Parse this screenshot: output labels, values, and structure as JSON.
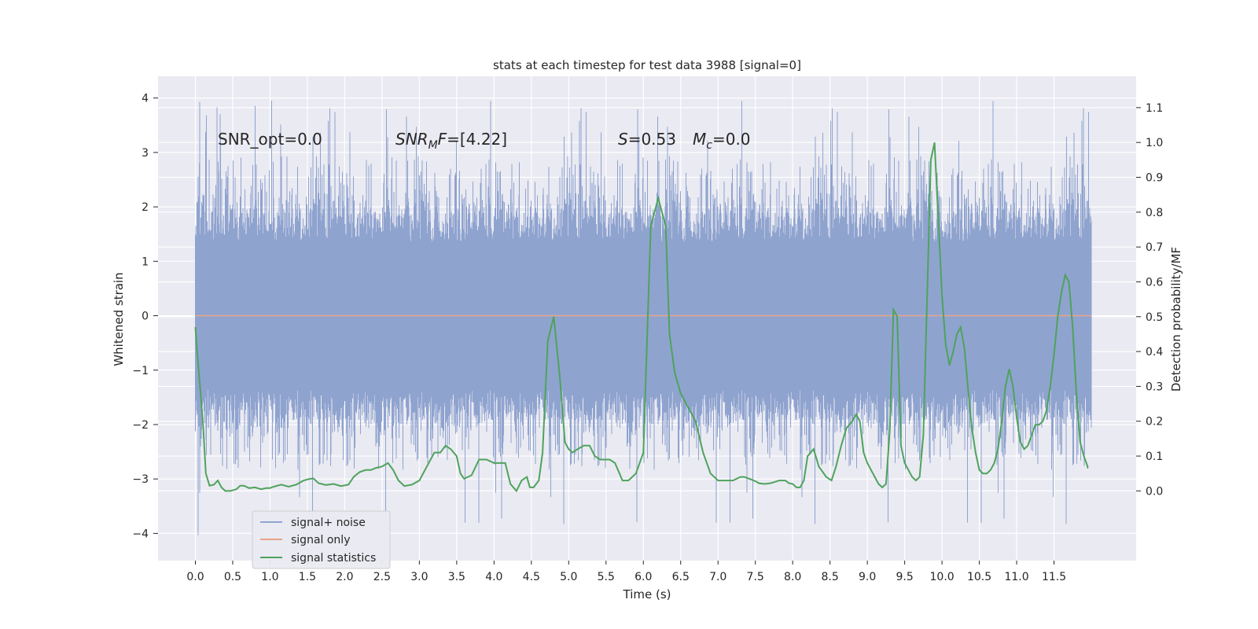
{
  "chart_data": {
    "type": "line",
    "title": "stats at each timestep for test data 3988 [signal=0]",
    "xlabel": "Time (s)",
    "ylabel_left": "Whitened strain",
    "ylabel_right": "Detection probability/MF",
    "xlim": [
      -0.5,
      12.6
    ],
    "ylim_left": [
      -4.5,
      4.4
    ],
    "ylim_right": [
      -0.2,
      1.19
    ],
    "xticks": [
      0.0,
      0.5,
      1.0,
      1.5,
      2.0,
      2.5,
      3.0,
      3.5,
      4.0,
      4.5,
      5.0,
      5.5,
      6.0,
      6.5,
      7.0,
      7.5,
      8.0,
      8.5,
      9.0,
      9.5,
      10.0,
      10.5,
      11.0,
      11.5
    ],
    "xtick_labels": [
      "0.0",
      "0.5",
      "1.0",
      "1.5",
      "2.0",
      "2.5",
      "3.0",
      "3.5",
      "4.0",
      "4.5",
      "5.0",
      "5.5",
      "6.0",
      "6.5",
      "7.0",
      "7.5",
      "8.0",
      "8.5",
      "9.0",
      "9.5",
      "10.0",
      "10.5",
      "11.0",
      "11.5"
    ],
    "yticks_left": [
      -4,
      -3,
      -2,
      -1,
      0,
      1,
      2,
      3,
      4
    ],
    "ytick_labels_left": [
      "−4",
      "−3",
      "−2",
      "−1",
      "0",
      "1",
      "2",
      "3",
      "4"
    ],
    "yticks_right": [
      0.0,
      0.1,
      0.2,
      0.3,
      0.4,
      0.5,
      0.6,
      0.7,
      0.8,
      0.9,
      1.0,
      1.1
    ],
    "ytick_labels_right": [
      "0.0",
      "0.1",
      "0.2",
      "0.3",
      "0.4",
      "0.5",
      "0.6",
      "0.7",
      "0.8",
      "0.9",
      "1.0",
      "1.1"
    ],
    "annotations": {
      "snr_opt": "SNR_opt=0.0",
      "snr_mf_main": "SNR",
      "snr_mf_sub": "M",
      "snr_mf_rest": "F",
      "snr_mf_value": "=[4.22]",
      "s_symbol": "S",
      "s_value": "=0.53",
      "mc_symbol": "M",
      "mc_sub": "c",
      "mc_value": "=0.0"
    },
    "series": [
      {
        "name": "signal+ noise",
        "color": "#8fa3cf",
        "axis": "left",
        "kind": "dense_noise",
        "x_range": [
          0.0,
          12.0
        ],
        "sample_rate_hz": 2048,
        "core_band": [
          -1.35,
          1.35
        ],
        "typical_peak": [
          -2.7,
          2.8
        ],
        "extremes": [
          -4.05,
          4.0
        ]
      },
      {
        "name": "signal only",
        "color": "#e8a58a",
        "axis": "left",
        "x": [
          0.0,
          12.0
        ],
        "values": [
          0.0,
          0.0
        ]
      },
      {
        "name": "signal statistics",
        "color": "#4ea35c",
        "axis": "right",
        "x": [
          0.0,
          0.02,
          0.1,
          0.14,
          0.19,
          0.25,
          0.3,
          0.35,
          0.4,
          0.47,
          0.55,
          0.6,
          0.65,
          0.72,
          0.8,
          0.88,
          0.95,
          1.0,
          1.05,
          1.15,
          1.25,
          1.35,
          1.45,
          1.52,
          1.58,
          1.65,
          1.75,
          1.85,
          1.95,
          2.05,
          2.12,
          2.2,
          2.28,
          2.35,
          2.42,
          2.5,
          2.58,
          2.65,
          2.72,
          2.8,
          2.9,
          3.0,
          3.1,
          3.2,
          3.28,
          3.35,
          3.42,
          3.5,
          3.55,
          3.6,
          3.7,
          3.8,
          3.9,
          4.0,
          4.08,
          4.15,
          4.22,
          4.3,
          4.37,
          4.44,
          4.48,
          4.53,
          4.6,
          4.65,
          4.72,
          4.8,
          4.88,
          4.95,
          5.0,
          5.05,
          5.12,
          5.2,
          5.28,
          5.35,
          5.42,
          5.48,
          5.55,
          5.62,
          5.68,
          5.72,
          5.8,
          5.9,
          6.0,
          6.1,
          6.2,
          6.3,
          6.35,
          6.42,
          6.5,
          6.6,
          6.7,
          6.8,
          6.9,
          7.0,
          7.1,
          7.2,
          7.3,
          7.35,
          7.42,
          7.5,
          7.55,
          7.62,
          7.7,
          7.75,
          7.82,
          7.9,
          7.95,
          8.0,
          8.05,
          8.1,
          8.15,
          8.2,
          8.28,
          8.35,
          8.45,
          8.52,
          8.58,
          8.65,
          8.72,
          8.8,
          8.85,
          8.9,
          8.95,
          9.0,
          9.05,
          9.1,
          9.15,
          9.2,
          9.25,
          9.3,
          9.35,
          9.4,
          9.45,
          9.5,
          9.55,
          9.6,
          9.65,
          9.7,
          9.75,
          9.8,
          9.85,
          9.9,
          9.95,
          10.0,
          10.05,
          10.1,
          10.15,
          10.2,
          10.25,
          10.3,
          10.35,
          10.4,
          10.45,
          10.5,
          10.55,
          10.6,
          10.65,
          10.7,
          10.75,
          10.8,
          10.85,
          10.9,
          10.95,
          11.0,
          11.05,
          11.1,
          11.15,
          11.2,
          11.25,
          11.3,
          11.35,
          11.4,
          11.45,
          11.5,
          11.55,
          11.6,
          11.65,
          11.7,
          11.75,
          11.8,
          11.85,
          11.9,
          11.95
        ],
        "values": [
          0.47,
          0.41,
          0.2,
          0.05,
          0.015,
          0.018,
          0.03,
          0.01,
          0.0,
          0.0,
          0.005,
          0.015,
          0.015,
          0.008,
          0.01,
          0.005,
          0.008,
          0.008,
          0.012,
          0.018,
          0.012,
          0.018,
          0.03,
          0.034,
          0.036,
          0.022,
          0.017,
          0.02,
          0.014,
          0.018,
          0.04,
          0.054,
          0.06,
          0.06,
          0.066,
          0.07,
          0.08,
          0.06,
          0.03,
          0.014,
          0.018,
          0.03,
          0.07,
          0.11,
          0.11,
          0.13,
          0.12,
          0.1,
          0.05,
          0.035,
          0.045,
          0.09,
          0.09,
          0.08,
          0.08,
          0.08,
          0.02,
          0.0,
          0.03,
          0.04,
          0.01,
          0.01,
          0.03,
          0.11,
          0.43,
          0.5,
          0.33,
          0.14,
          0.12,
          0.11,
          0.12,
          0.13,
          0.13,
          0.1,
          0.09,
          0.09,
          0.09,
          0.08,
          0.05,
          0.03,
          0.03,
          0.05,
          0.11,
          0.76,
          0.84,
          0.76,
          0.45,
          0.34,
          0.28,
          0.24,
          0.2,
          0.11,
          0.05,
          0.03,
          0.03,
          0.03,
          0.04,
          0.04,
          0.035,
          0.028,
          0.022,
          0.02,
          0.022,
          0.025,
          0.03,
          0.03,
          0.022,
          0.02,
          0.01,
          0.01,
          0.03,
          0.1,
          0.12,
          0.07,
          0.04,
          0.03,
          0.07,
          0.13,
          0.18,
          0.2,
          0.22,
          0.2,
          0.11,
          0.08,
          0.06,
          0.04,
          0.02,
          0.01,
          0.02,
          0.17,
          0.52,
          0.5,
          0.13,
          0.08,
          0.06,
          0.04,
          0.03,
          0.04,
          0.16,
          0.55,
          0.95,
          1.0,
          0.78,
          0.56,
          0.42,
          0.36,
          0.4,
          0.45,
          0.47,
          0.41,
          0.29,
          0.18,
          0.11,
          0.06,
          0.05,
          0.05,
          0.06,
          0.08,
          0.12,
          0.2,
          0.3,
          0.35,
          0.3,
          0.21,
          0.14,
          0.12,
          0.13,
          0.16,
          0.19,
          0.19,
          0.2,
          0.23,
          0.3,
          0.39,
          0.5,
          0.57,
          0.62,
          0.6,
          0.47,
          0.28,
          0.14,
          0.1,
          0.07
        ],
        "x_note": "x values are seconds; the final value 0.065 at 11.95"
      }
    ],
    "legend": {
      "placement": "lower-left",
      "entries": [
        "signal+ noise",
        "signal only",
        "signal statistics"
      ]
    },
    "colors": {
      "plot_bg": "#eaeaf2",
      "grid": "#ffffff",
      "noise": "#8fa3cf",
      "signal": "#e8a58a",
      "stats": "#4ea35c"
    }
  }
}
